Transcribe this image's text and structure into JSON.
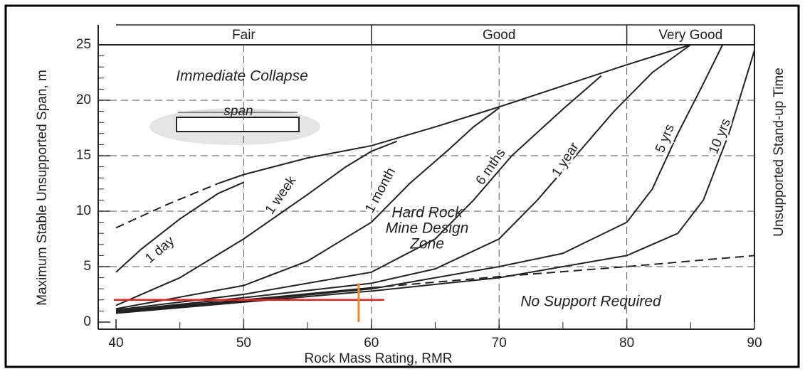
{
  "chart_data": {
    "type": "line",
    "x_label": "Rock Mass Rating, RMR",
    "y_label": "Maximum Stable Unsupported Span, m",
    "y2_label": "Unsupported Stand-up Time",
    "bands": [
      {
        "label": "Fair",
        "from": 40,
        "to": 60
      },
      {
        "label": "Good",
        "from": 60,
        "to": 80
      },
      {
        "label": "Very Good",
        "from": 80,
        "to": 90
      }
    ],
    "annotations": [
      "Immediate Collapse",
      "span",
      "Hard Rock",
      "Mine Design",
      "Zone",
      "No Support Required"
    ],
    "xlim": [
      40,
      90
    ],
    "xticks": [
      40,
      50,
      60,
      70,
      80,
      90
    ],
    "ylim": [
      0,
      25
    ],
    "yticks": [
      0,
      5,
      10,
      15,
      20,
      25
    ],
    "grid": true,
    "series": [
      {
        "color": "#222",
        "dashed": true,
        "x": [
          40,
          44,
          48
        ],
        "values": [
          8.5,
          10.6,
          12.5
        ]
      },
      {
        "color": "#222",
        "dashed": false,
        "x": [
          48,
          50,
          55,
          60,
          65,
          70,
          75,
          80,
          85
        ],
        "values": [
          12.5,
          13.3,
          14.8,
          15.9,
          17.6,
          19.4,
          21.3,
          23.2,
          25
        ]
      },
      {
        "color": "#222",
        "dashed": false,
        "x": [
          40,
          50,
          60
        ],
        "values": [
          1,
          2,
          3.1
        ]
      },
      {
        "color": "#222",
        "dashed": true,
        "x": [
          60,
          70,
          80,
          90
        ],
        "values": [
          3.1,
          4.1,
          5,
          6
        ]
      },
      {
        "name": "1 day",
        "color": "#222",
        "dashed": false,
        "x": [
          40,
          42,
          45,
          48,
          50
        ],
        "values": [
          4.5,
          6.6,
          9.3,
          11.6,
          12.6
        ]
      },
      {
        "name": "1 week",
        "color": "#222",
        "dashed": false,
        "x": [
          40,
          45,
          50,
          55,
          58,
          60,
          62
        ],
        "values": [
          1.5,
          4,
          7.5,
          11.5,
          14,
          15.4,
          16.3
        ]
      },
      {
        "name": "1 month",
        "color": "#222",
        "dashed": false,
        "x": [
          40,
          50,
          55,
          60,
          63,
          66,
          68,
          70
        ],
        "values": [
          1.2,
          3.3,
          5.5,
          9,
          12.5,
          15.5,
          17.6,
          19.3
        ]
      },
      {
        "name": "6 mths",
        "color": "#222",
        "dashed": false,
        "x": [
          40,
          50,
          60,
          65,
          68,
          71,
          75,
          78
        ],
        "values": [
          1.1,
          2.5,
          4.5,
          7.5,
          11,
          15,
          19.2,
          22.2
        ]
      },
      {
        "name": "1 year",
        "color": "#222",
        "dashed": false,
        "x": [
          40,
          50,
          60,
          65,
          70,
          73,
          76,
          79,
          82,
          85
        ],
        "values": [
          1,
          2.2,
          3.5,
          4.8,
          7.5,
          11,
          15,
          19,
          22.5,
          25
        ]
      },
      {
        "name": "5 yrs",
        "color": "#222",
        "dashed": false,
        "x": [
          40,
          50,
          60,
          70,
          75,
          80,
          82,
          84,
          86,
          87.5
        ],
        "values": [
          0.9,
          1.9,
          3,
          5,
          6.2,
          9,
          12,
          17,
          21.5,
          25
        ]
      },
      {
        "name": "10 yrs",
        "color": "#222",
        "dashed": false,
        "x": [
          40,
          50,
          60,
          70,
          80,
          84,
          86,
          88,
          90
        ],
        "values": [
          0.8,
          1.8,
          2.8,
          4,
          6,
          8,
          11,
          17,
          24.5
        ]
      }
    ],
    "hline": {
      "value": 2,
      "color": "#e82020"
    },
    "vline": {
      "value": 59,
      "color": "#f08a30"
    }
  }
}
